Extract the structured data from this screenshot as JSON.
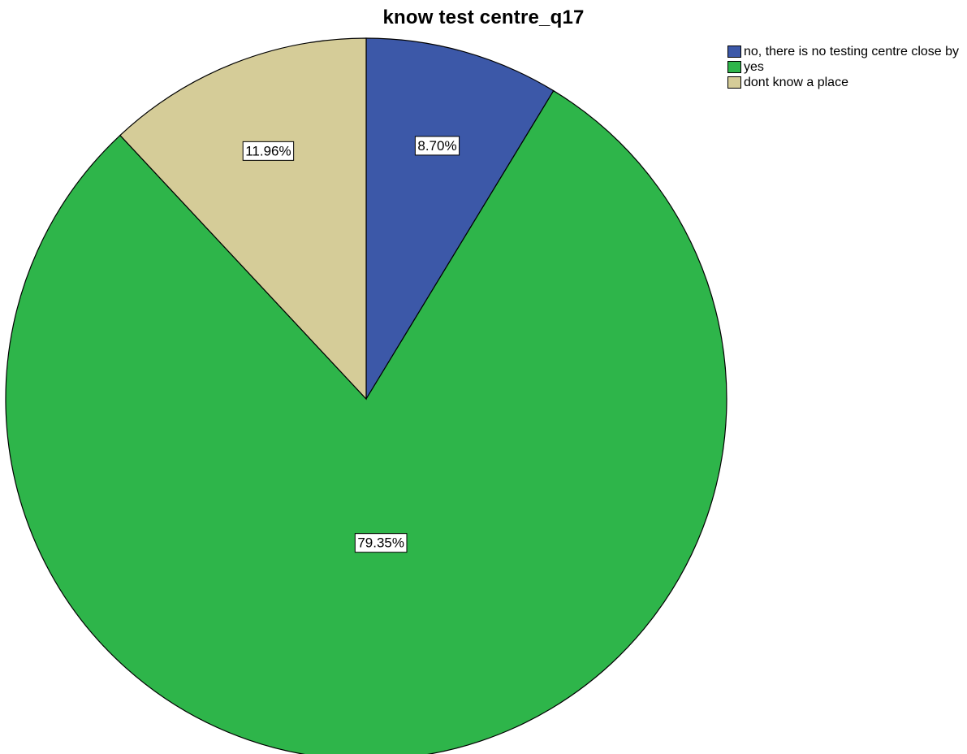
{
  "chart_data": {
    "type": "pie",
    "title": "know test centre_q17",
    "slices": [
      {
        "label": "no, there is no testing centre close by",
        "value": 8.7,
        "display": "8.70%",
        "color": "#3c58a8"
      },
      {
        "label": "yes",
        "value": 79.35,
        "display": "79.35%",
        "color": "#2eb54a"
      },
      {
        "label": "dont know a place",
        "value": 11.96,
        "display": "11.96%",
        "color": "#d5cc98"
      }
    ],
    "start": "12 o'clock",
    "direction": "clockwise",
    "legend_position": "top-right"
  }
}
